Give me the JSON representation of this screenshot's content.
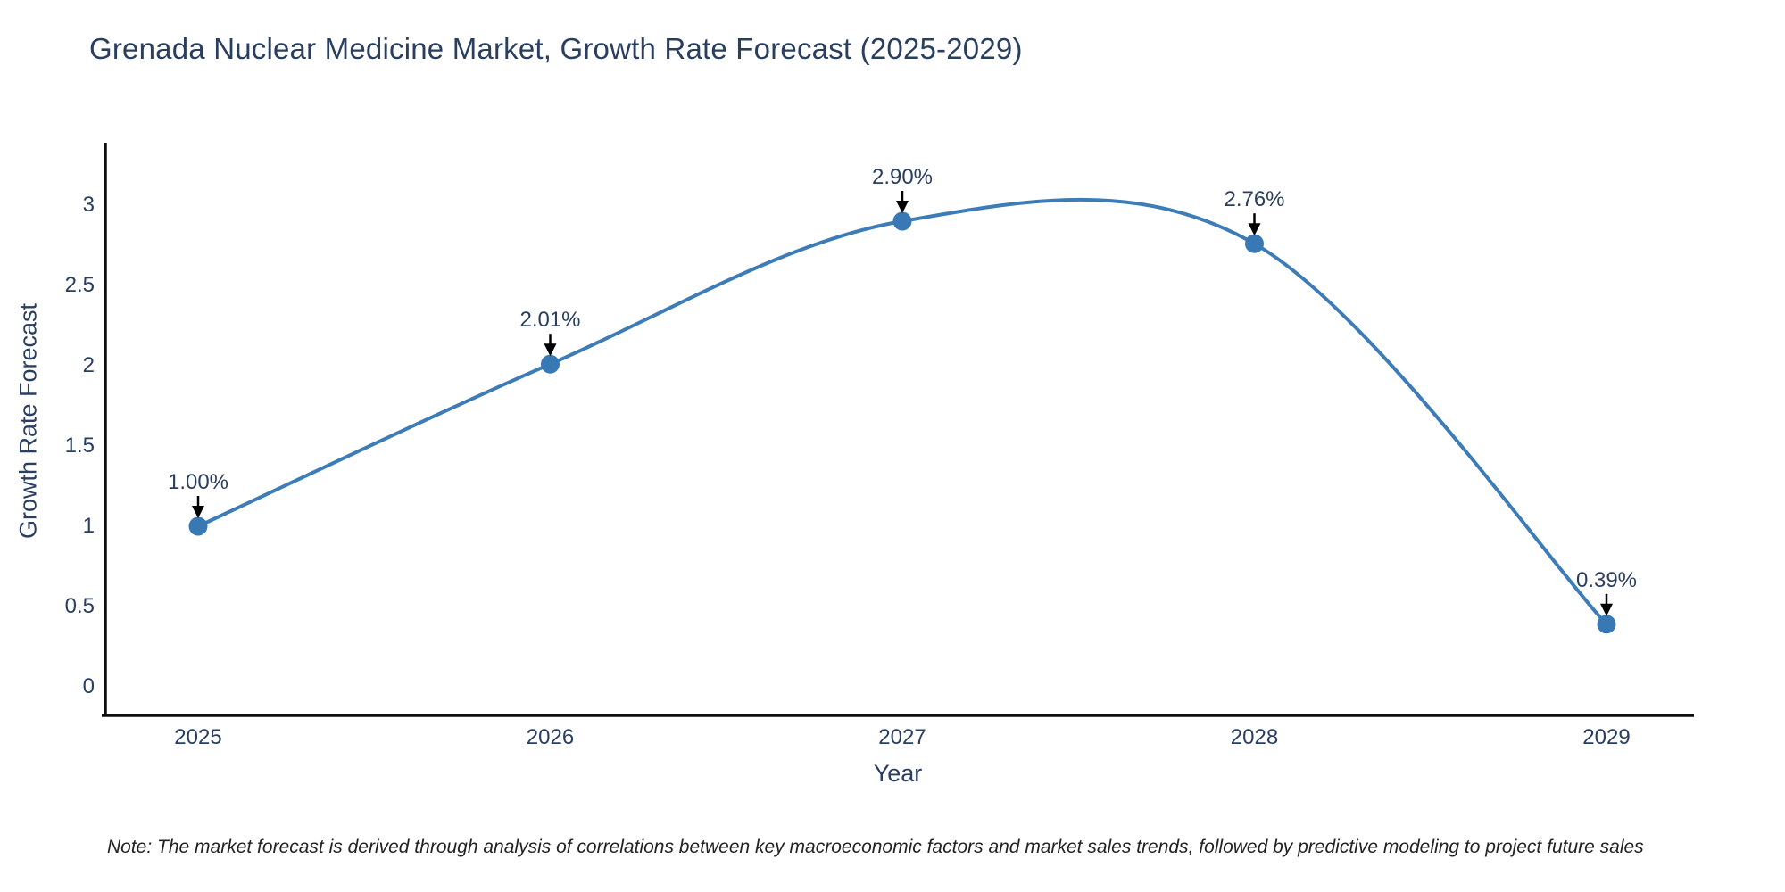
{
  "title": "Grenada Nuclear Medicine Market, Growth Rate Forecast (2025-2029)",
  "chart_data": {
    "type": "line",
    "line_shape": "spline",
    "x": [
      2025,
      2026,
      2027,
      2028,
      2029
    ],
    "values": [
      1.0,
      2.01,
      2.9,
      2.76,
      0.39
    ],
    "point_labels": [
      "1.00%",
      "2.01%",
      "2.90%",
      "2.76%",
      "0.39%"
    ],
    "series_name": "Growth Rate Forecast",
    "title": "Grenada Nuclear Medicine Market, Growth Rate Forecast (2025-2029)",
    "xlabel": "Year",
    "ylabel": "Growth Rate Forecast",
    "yticks": [
      0,
      0.5,
      1,
      1.5,
      2,
      2.5,
      3
    ],
    "ytick_labels": [
      "0",
      "0.5",
      "1",
      "1.5",
      "2",
      "2.5",
      "3"
    ],
    "xtick_labels": [
      "2025",
      "2026",
      "2027",
      "2028",
      "2029"
    ],
    "ylim": [
      -0.17,
      3.4
    ],
    "grid": false,
    "legend": "none",
    "line_color": "#3d7cb6",
    "marker_color": "#3878b4",
    "arrow_color": "#000000"
  },
  "note": "Note: The market forecast is derived through analysis of correlations between key macroeconomic factors and market sales trends, followed by predictive modeling to project future sales",
  "colors": {
    "text": "#2a3f5f",
    "axis": "#0d0d0d",
    "note_text": "#222222",
    "background": "#ffffff"
  }
}
